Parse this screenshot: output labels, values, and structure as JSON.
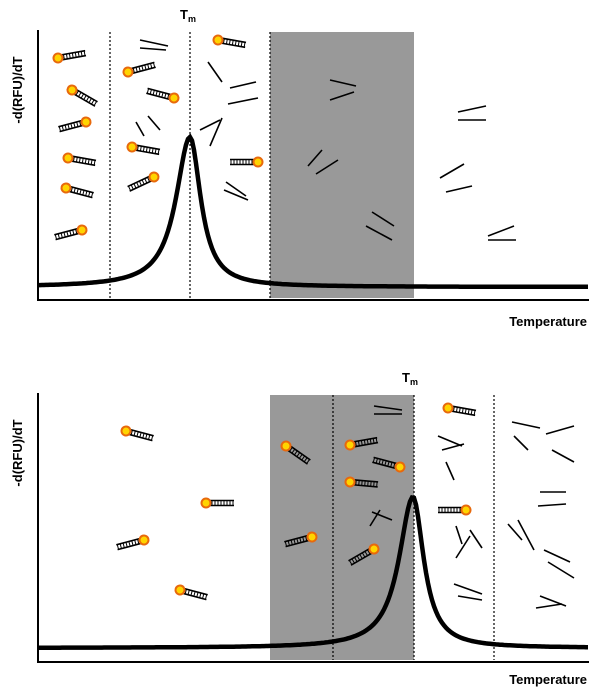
{
  "panels": [
    {
      "y_axis_label": "-d(RFU)/dT",
      "x_axis_label": "Temperature",
      "tm_label": {
        "main": "T",
        "sub": "m"
      }
    },
    {
      "y_axis_label": "-d(RFU)/dT",
      "x_axis_label": "Temperature",
      "tm_label": {
        "main": "T",
        "sub": "m"
      }
    }
  ]
}
